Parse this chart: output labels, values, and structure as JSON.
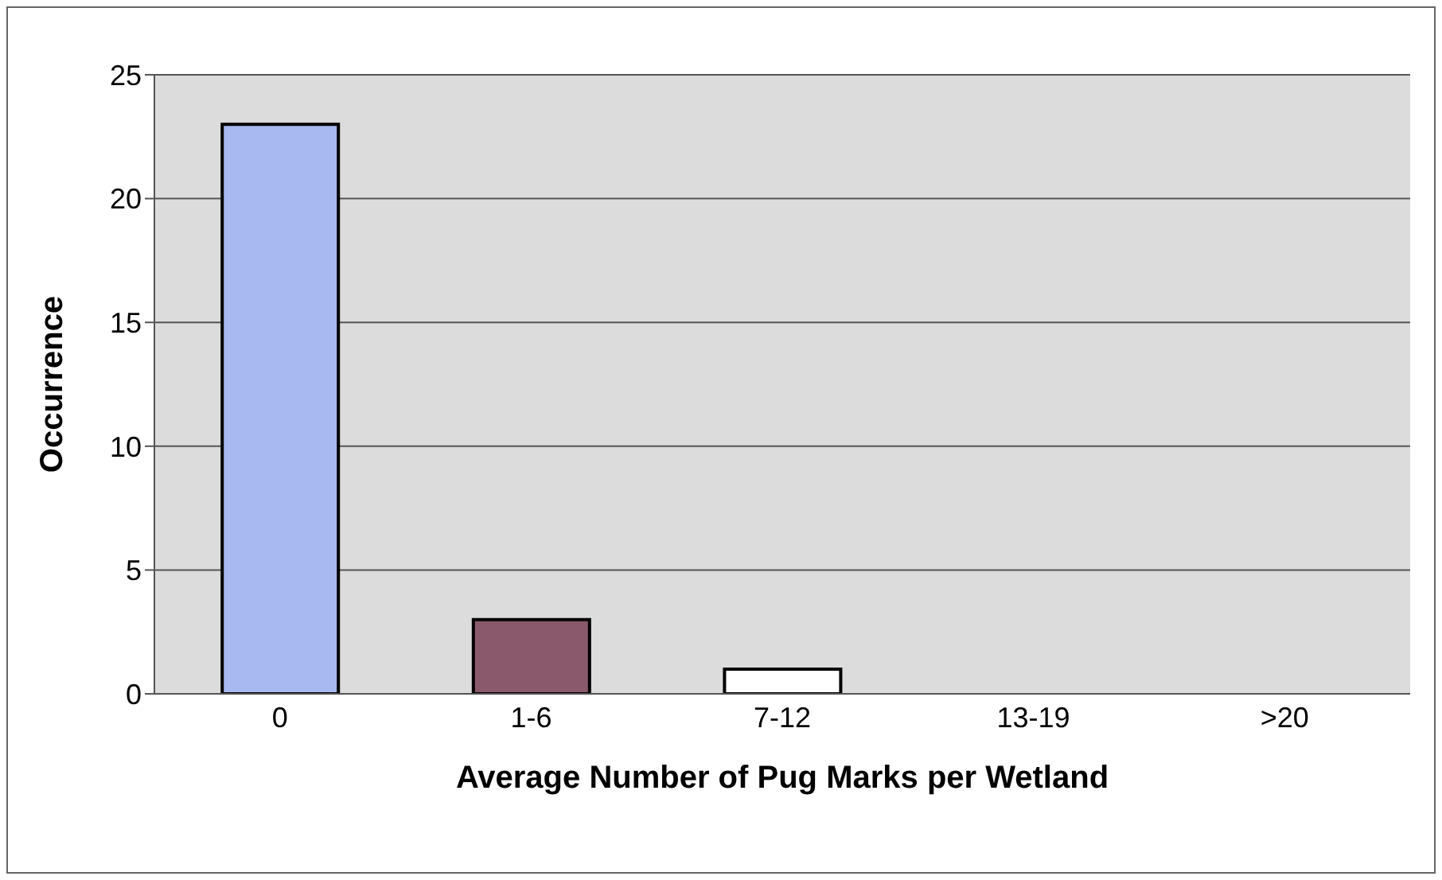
{
  "chart_data": {
    "type": "bar",
    "xlabel": "Average Number of Pug Marks per Wetland",
    "ylabel": "Occurrence",
    "categories": [
      "0",
      "1-6",
      "7-12",
      "13-19",
      ">20"
    ],
    "values": [
      23,
      3,
      1,
      0,
      0
    ],
    "colors": [
      "#a8b8f0",
      "#8a5a6c",
      "#ffffff",
      "#ffffff",
      "#ffffff"
    ],
    "ylim": [
      0,
      25
    ],
    "yticks": [
      0,
      5,
      10,
      15,
      20,
      25
    ],
    "grid": "y"
  }
}
